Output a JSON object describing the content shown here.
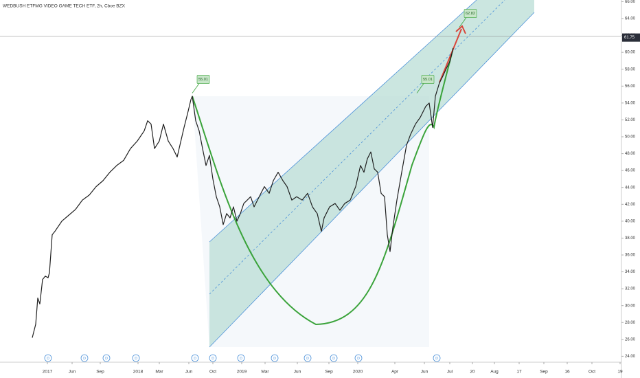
{
  "chart_data": {
    "type": "line",
    "title": "WEDBUSH ETFMG VIDEO GAME TECH ETF, 2h, Cboe BZX",
    "color": "#1f1f1f",
    "x": [
      47,
      52,
      55,
      58,
      62,
      66,
      70,
      72,
      76,
      80,
      90,
      100,
      110,
      120,
      130,
      140,
      150,
      160,
      170,
      180,
      190,
      200,
      210,
      215,
      220,
      225,
      232,
      238,
      245,
      252,
      258,
      262,
      268,
      273,
      278,
      280,
      285,
      290,
      295,
      300,
      305,
      310,
      315,
      320,
      325,
      330,
      335,
      340,
      345,
      350,
      355,
      360,
      365,
      370,
      375,
      385,
      392,
      398,
      405,
      412,
      418,
      425,
      432,
      440,
      448,
      455,
      462,
      468,
      472,
      480,
      488,
      495,
      502,
      510,
      518,
      525,
      530,
      535,
      540,
      545,
      550,
      555,
      560,
      564,
      568,
      572,
      578,
      585,
      592,
      598,
      605,
      612,
      620,
      625,
      630,
      634,
      640,
      645,
      650,
      655,
      660
    ],
    "values": [
      26.2,
      27.8,
      30.9,
      30.2,
      33.1,
      33.5,
      33.3,
      33.9,
      38.4,
      38.8,
      40.0,
      40.7,
      41.4,
      42.5,
      43.1,
      44.1,
      44.8,
      45.8,
      46.6,
      47.2,
      48.6,
      49.5,
      50.7,
      51.9,
      51.5,
      48.6,
      49.5,
      51.5,
      49.5,
      48.6,
      47.6,
      49.0,
      51.1,
      52.7,
      54.4,
      54.8,
      51.9,
      50.7,
      48.6,
      46.6,
      47.8,
      45.0,
      42.9,
      41.7,
      39.6,
      40.9,
      40.4,
      41.7,
      40.0,
      40.9,
      42.1,
      42.5,
      42.9,
      41.7,
      42.5,
      44.1,
      43.3,
      44.8,
      45.8,
      44.8,
      44.1,
      42.5,
      42.9,
      42.5,
      43.3,
      41.7,
      40.9,
      38.8,
      40.4,
      41.7,
      42.1,
      41.3,
      42.1,
      42.5,
      44.1,
      46.6,
      45.8,
      47.4,
      48.2,
      46.2,
      45.8,
      43.3,
      42.9,
      38.4,
      36.4,
      39.2,
      42.5,
      45.8,
      49.0,
      50.3,
      51.5,
      52.3,
      53.6,
      54.0,
      51.1,
      54.8,
      56.4,
      57.2,
      58.1,
      58.9,
      60.5
    ],
    "xlim": [
      0,
      905
    ],
    "ylim": [
      23.3,
      66.2
    ],
    "yticks": [
      {
        "value": 24,
        "label": "24.00"
      },
      {
        "value": 26,
        "label": "26.00"
      },
      {
        "value": 28,
        "label": "28.00"
      },
      {
        "value": 30,
        "label": "30.00"
      },
      {
        "value": 32,
        "label": "32.00"
      },
      {
        "value": 34,
        "label": "34.00"
      },
      {
        "value": 36,
        "label": "36.00"
      },
      {
        "value": 38,
        "label": "38.00"
      },
      {
        "value": 40,
        "label": "40.00"
      },
      {
        "value": 42,
        "label": "42.00"
      },
      {
        "value": 44,
        "label": "44.00"
      },
      {
        "value": 46,
        "label": "46.00"
      },
      {
        "value": 48,
        "label": "48.00"
      },
      {
        "value": 50,
        "label": "50.00"
      },
      {
        "value": 52,
        "label": "52.00"
      },
      {
        "value": 54,
        "label": "54.00"
      },
      {
        "value": 56,
        "label": "56.00"
      },
      {
        "value": 58,
        "label": "58.00"
      },
      {
        "value": 60,
        "label": "60.00"
      },
      {
        "value": 62,
        "label": "62.00"
      },
      {
        "value": 64,
        "label": "64.00"
      },
      {
        "value": 66,
        "label": "66.00"
      }
    ],
    "xticks": [
      {
        "value": 69,
        "label": "2017"
      },
      {
        "value": 105,
        "label": "Jun"
      },
      {
        "value": 146,
        "label": "Sep"
      },
      {
        "value": 201,
        "label": "2018"
      },
      {
        "value": 232,
        "label": "Mar"
      },
      {
        "value": 275,
        "label": "Jun"
      },
      {
        "value": 310,
        "label": "Oct"
      },
      {
        "value": 352,
        "label": "2019"
      },
      {
        "value": 386,
        "label": "Mar"
      },
      {
        "value": 433,
        "label": "Jun"
      },
      {
        "value": 479,
        "label": "Sep"
      },
      {
        "value": 521,
        "label": "2020"
      },
      {
        "value": 575,
        "label": "Apr"
      },
      {
        "value": 618,
        "label": "Jun"
      },
      {
        "value": 655,
        "label": "Jul"
      },
      {
        "value": 688,
        "label": "20"
      },
      {
        "value": 720,
        "label": "Aug"
      },
      {
        "value": 756,
        "label": "17"
      },
      {
        "value": 792,
        "label": "Sep"
      },
      {
        "value": 826,
        "label": "16"
      },
      {
        "value": 862,
        "label": "Oct"
      },
      {
        "value": 903,
        "label": "19"
      }
    ],
    "last_price": {
      "value": 61.75,
      "label": "61.75"
    },
    "annotations": [
      {
        "x": 296,
        "value": 55.01,
        "label": "55.01"
      },
      {
        "x": 623,
        "value": 55.01,
        "label": "55.01"
      },
      {
        "x": 685,
        "value": 62.82,
        "label": "62.82"
      }
    ],
    "dividends": {
      "label": "D",
      "x": [
        70,
        123,
        155,
        198,
        284,
        310,
        351,
        400,
        448,
        486,
        522,
        636
      ]
    }
  }
}
